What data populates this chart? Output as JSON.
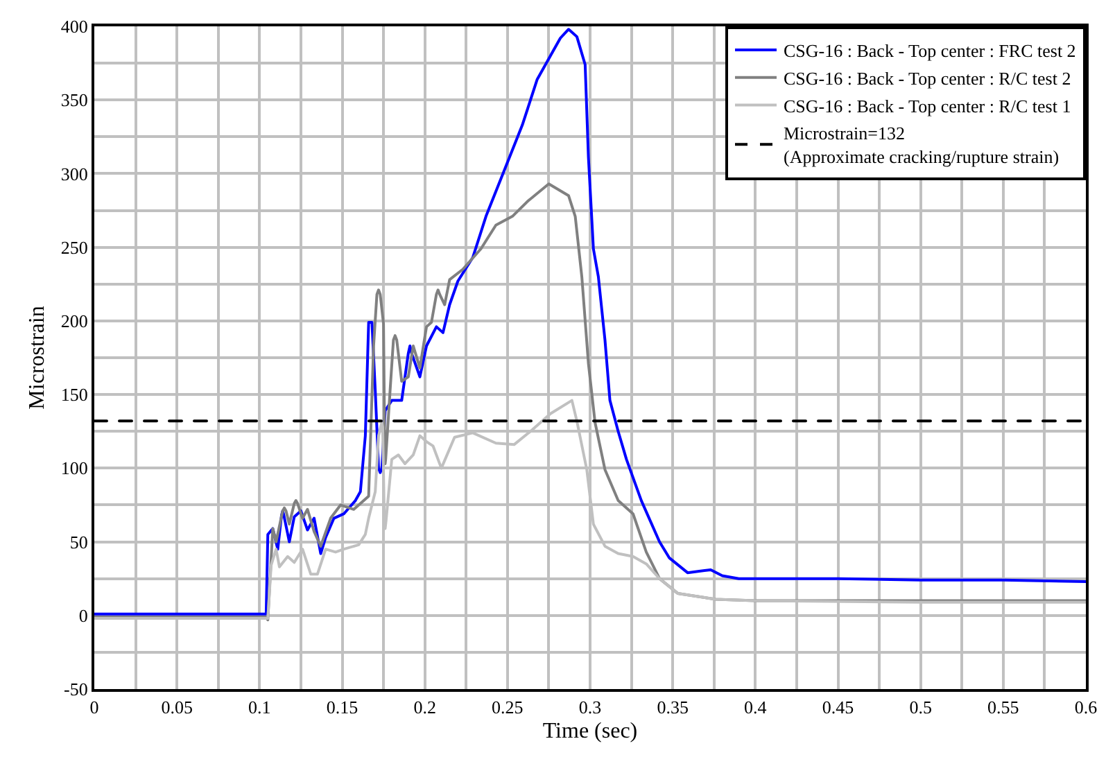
{
  "chart_data": {
    "type": "line",
    "xlabel": "Time (sec)",
    "ylabel": "Microstrain",
    "xlim": [
      0,
      0.6
    ],
    "ylim": [
      -50,
      400
    ],
    "xticks": [
      0,
      {
        "value": 0.025,
        "label": null
      },
      0.05,
      {
        "value": 0.075,
        "label": null
      },
      0.1,
      {
        "value": 0.125,
        "label": null
      },
      0.15,
      {
        "value": 0.175,
        "label": null
      },
      0.2,
      {
        "value": 0.225,
        "label": null
      },
      0.25,
      {
        "value": 0.275,
        "label": null
      },
      0.3,
      {
        "value": 0.325,
        "label": null
      },
      0.35,
      {
        "value": 0.375,
        "label": null
      },
      0.4,
      {
        "value": 0.425,
        "label": null
      },
      0.45,
      {
        "value": 0.475,
        "label": null
      },
      0.5,
      {
        "value": 0.525,
        "label": null
      },
      0.55,
      {
        "value": 0.575,
        "label": null
      },
      0.6
    ],
    "yticks": [
      -50,
      {
        "value": -25,
        "label": null
      },
      0,
      {
        "value": 25,
        "label": null
      },
      50,
      {
        "value": 75,
        "label": null
      },
      100,
      {
        "value": 125,
        "label": null
      },
      150,
      {
        "value": 175,
        "label": null
      },
      200,
      {
        "value": 225,
        "label": null
      },
      250,
      {
        "value": 275,
        "label": null
      },
      300,
      {
        "value": 325,
        "label": null
      },
      350,
      {
        "value": 375,
        "label": null
      },
      400
    ],
    "grid": true,
    "legend": "top right",
    "marker": "none",
    "line_style": "solid",
    "ref_lines": [
      {
        "axis": "y",
        "value": 132,
        "label": "Microstrain=132\n(Approximate cracking/rupture strain)",
        "color": "#000000",
        "line_style": "dashed"
      }
    ],
    "series": [
      {
        "name": "CSG-16 : Back - Top center : FRC test 2",
        "color": "#0000ff",
        "x": [
          0,
          0.05,
          0.104,
          0.105,
          0.108,
          0.111,
          0.1133,
          0.114,
          0.1147,
          0.118,
          0.121,
          0.125,
          0.129,
          0.133,
          0.137,
          0.14,
          0.145,
          0.151,
          0.158,
          0.161,
          0.164,
          0.166,
          0.168,
          0.17,
          0.172,
          0.173,
          0.174,
          0.176,
          0.18,
          0.186,
          0.19,
          0.191,
          0.192,
          0.197,
          0.201,
          0.207,
          0.211,
          0.215,
          0.22,
          0.229,
          0.237,
          0.248,
          0.259,
          0.268,
          0.276,
          0.282,
          0.287,
          0.292,
          0.297,
          0.299,
          0.302,
          0.305,
          0.309,
          0.312,
          0.317,
          0.322,
          0.331,
          0.342,
          0.348,
          0.359,
          0.366,
          0.373,
          0.38,
          0.39,
          0.4,
          0.45,
          0.5,
          0.55,
          0.6
        ],
        "values": [
          1,
          1,
          1,
          55,
          59,
          45,
          68,
          71,
          68,
          50,
          67,
          71,
          58,
          66,
          42,
          53,
          66,
          69,
          78,
          84,
          122,
          199,
          199,
          153,
          100,
          97,
          100,
          139,
          146,
          146,
          178,
          183,
          178,
          162,
          183,
          196,
          192,
          211,
          227,
          243,
          271,
          302,
          333,
          364,
          380,
          392,
          398,
          393,
          374,
          311,
          249,
          230,
          187,
          146,
          125,
          106,
          78,
          50,
          39,
          29,
          30,
          31,
          27,
          25,
          25,
          25,
          24,
          24,
          23
        ]
      },
      {
        "name": "CSG-16 : Back - Top center : R/C test 2",
        "color": "#808080",
        "x": [
          0,
          0.05,
          0.104,
          0.105,
          0.108,
          0.11,
          0.114,
          0.115,
          0.116,
          0.118,
          0.121,
          0.122,
          0.123,
          0.126,
          0.129,
          0.133,
          0.137,
          0.143,
          0.149,
          0.157,
          0.162,
          0.166,
          0.169,
          0.171,
          0.172,
          0.173,
          0.175,
          0.1758,
          0.176,
          0.1763,
          0.179,
          0.181,
          0.182,
          0.183,
          0.186,
          0.19,
          0.193,
          0.197,
          0.201,
          0.204,
          0.207,
          0.208,
          0.209,
          0.212,
          0.215,
          0.223,
          0.234,
          0.243,
          0.253,
          0.262,
          0.275,
          0.287,
          0.291,
          0.295,
          0.299,
          0.303,
          0.309,
          0.317,
          0.326,
          0.334,
          0.342,
          0.353,
          0.376,
          0.4,
          0.5,
          0.6
        ],
        "values": [
          -1,
          -1,
          -1,
          -3,
          59,
          50,
          71,
          73,
          71,
          62,
          76,
          78,
          76,
          66,
          72,
          57,
          47,
          66,
          75,
          72,
          77,
          81,
          183,
          218,
          221,
          218,
          198,
          106,
          103,
          106,
          153,
          187,
          190,
          187,
          159,
          162,
          183,
          168,
          196,
          199,
          218,
          221,
          218,
          211,
          228,
          235,
          249,
          265,
          271,
          281,
          293,
          285,
          271,
          230,
          171,
          131,
          99,
          78,
          69,
          43,
          25,
          15,
          11,
          10,
          10,
          10
        ]
      },
      {
        "name": "CSG-16 : Back - Top center : R/C test 1",
        "color": "#c0c0c0",
        "x": [
          0,
          0.05,
          0.104,
          0.105,
          0.107,
          0.11,
          0.112,
          0.117,
          0.121,
          0.126,
          0.131,
          0.135,
          0.14,
          0.146,
          0.151,
          0.16,
          0.164,
          0.166,
          0.17,
          0.172,
          0.1735,
          0.174,
          0.1745,
          0.1755,
          0.176,
          0.1765,
          0.18,
          0.184,
          0.188,
          0.193,
          0.197,
          0.201,
          0.205,
          0.21,
          0.218,
          0.229,
          0.243,
          0.254,
          0.265,
          0.276,
          0.289,
          0.292,
          0.298,
          0.302,
          0.309,
          0.317,
          0.326,
          0.334,
          0.342,
          0.353,
          0.376,
          0.4,
          0.5,
          0.6
        ],
        "values": [
          -2,
          -2,
          -2,
          -2,
          34,
          45,
          33,
          40,
          36,
          45,
          28,
          28,
          45,
          43,
          45,
          48,
          55,
          66,
          84,
          122,
          129,
          131,
          128,
          64,
          59,
          64,
          106,
          109,
          103,
          109,
          122,
          118,
          115,
          100,
          121,
          124,
          117,
          116,
          126,
          137,
          146,
          132,
          99,
          62,
          47,
          42,
          40,
          35,
          25,
          15,
          11,
          10,
          9,
          9
        ]
      }
    ]
  }
}
